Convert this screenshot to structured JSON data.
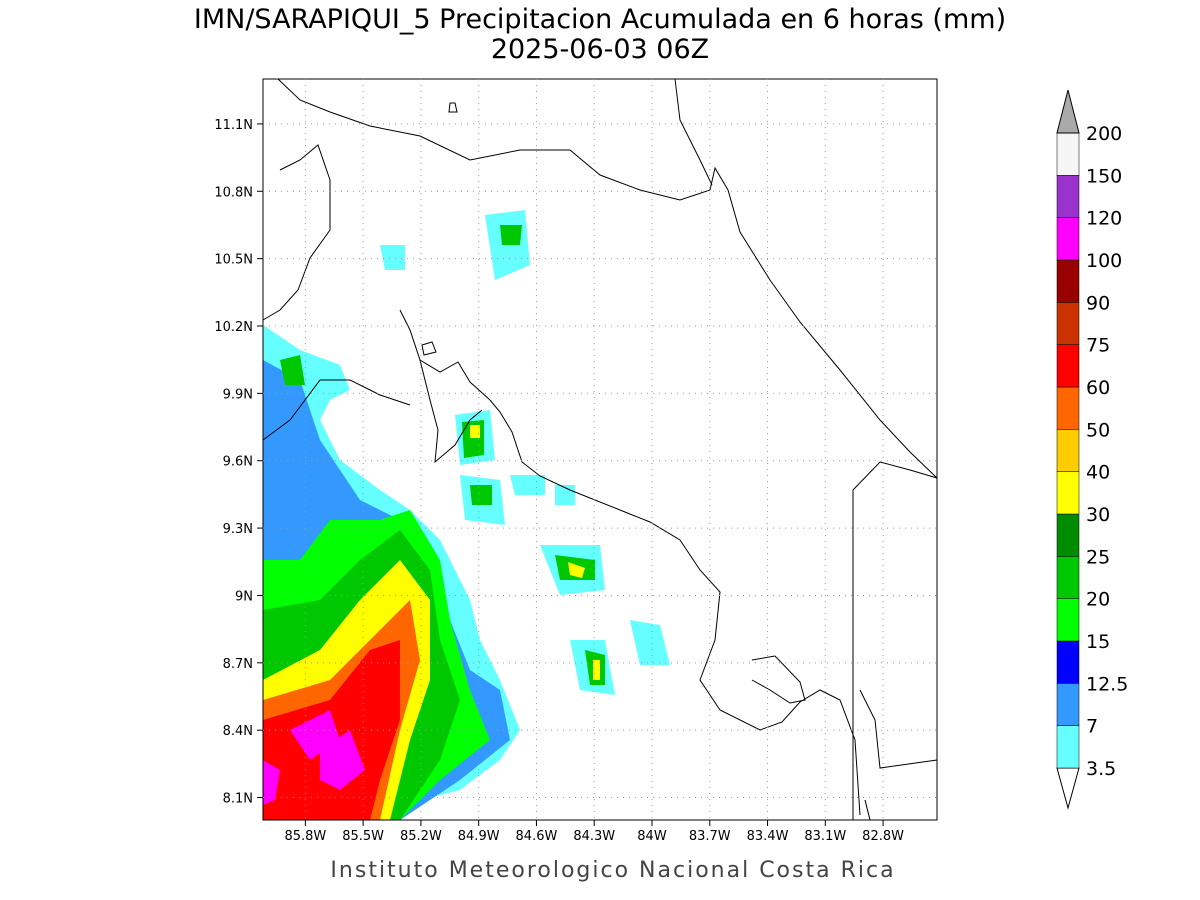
{
  "title": "IMN/SARAPIQUI_5 Precipitacion Acumulada en 6 horas (mm)",
  "subtitle": "2025-06-03 06Z",
  "footer": "Instituto Meteorologico Nacional Costa Rica",
  "map": {
    "xlim": [
      -86.02,
      -82.52
    ],
    "ylim": [
      8.0,
      11.3
    ],
    "xticks": [
      {
        "value": -85.8,
        "label": "85.8W"
      },
      {
        "value": -85.5,
        "label": "85.5W"
      },
      {
        "value": -85.2,
        "label": "85.2W"
      },
      {
        "value": -84.9,
        "label": "84.9W"
      },
      {
        "value": -84.6,
        "label": "84.6W"
      },
      {
        "value": -84.3,
        "label": "84.3W"
      },
      {
        "value": -84.0,
        "label": "84W"
      },
      {
        "value": -83.7,
        "label": "83.7W"
      },
      {
        "value": -83.4,
        "label": "83.4W"
      },
      {
        "value": -83.1,
        "label": "83.1W"
      },
      {
        "value": -82.8,
        "label": "82.8W"
      }
    ],
    "yticks": [
      {
        "value": 8.1,
        "label": "8.1N"
      },
      {
        "value": 8.4,
        "label": "8.4N"
      },
      {
        "value": 8.7,
        "label": "8.7N"
      },
      {
        "value": 9.0,
        "label": "9N"
      },
      {
        "value": 9.3,
        "label": "9.3N"
      },
      {
        "value": 9.6,
        "label": "9.6N"
      },
      {
        "value": 9.9,
        "label": "9.9N"
      },
      {
        "value": 10.2,
        "label": "10.2N"
      },
      {
        "value": 10.5,
        "label": "10.5N"
      },
      {
        "value": 10.8,
        "label": "10.8N"
      },
      {
        "value": 11.1,
        "label": "11.1N"
      }
    ],
    "grid": true
  },
  "colorbar": {
    "levels": [
      3.5,
      7,
      12.5,
      15,
      20,
      25,
      30,
      40,
      50,
      60,
      75,
      90,
      100,
      120,
      150,
      200
    ],
    "colors": [
      "#ffffff",
      "#66ffff",
      "#3399ff",
      "#0000ff",
      "#00ff00",
      "#00c800",
      "#008c00",
      "#ffff00",
      "#ffcc00",
      "#ff6600",
      "#ff0000",
      "#cc3300",
      "#990000",
      "#ff00ff",
      "#9933cc",
      "#f5f5f5",
      "#aaaaaa"
    ]
  }
}
